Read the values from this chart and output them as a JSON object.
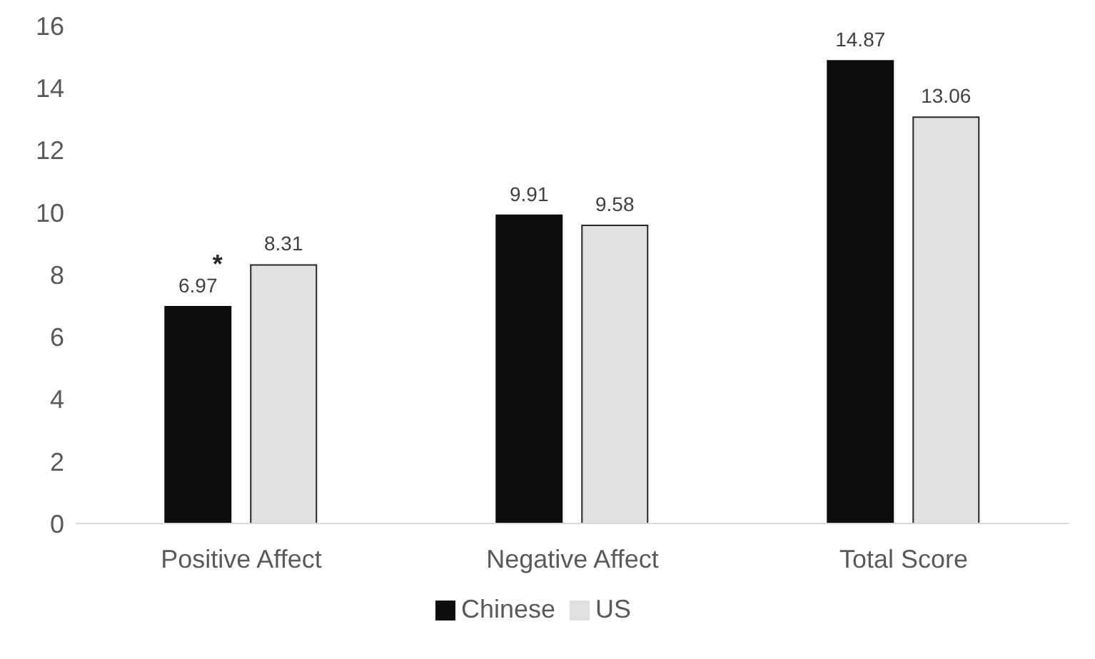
{
  "chart_data": {
    "type": "bar",
    "categories": [
      "Positive Affect",
      "Negative Affect",
      "Total Score"
    ],
    "series": [
      {
        "name": "Chinese",
        "color": "#0d0d0d",
        "values": [
          6.97,
          9.91,
          14.87
        ]
      },
      {
        "name": "US",
        "color": "#e0e0e0",
        "values": [
          8.31,
          9.58,
          13.06
        ]
      }
    ],
    "ylim": [
      0,
      16
    ],
    "yticks": [
      0,
      2,
      4,
      6,
      8,
      10,
      12,
      14,
      16
    ],
    "grid": false,
    "legend": "bottom",
    "data_labels": true,
    "annotations": [
      "*"
    ]
  }
}
